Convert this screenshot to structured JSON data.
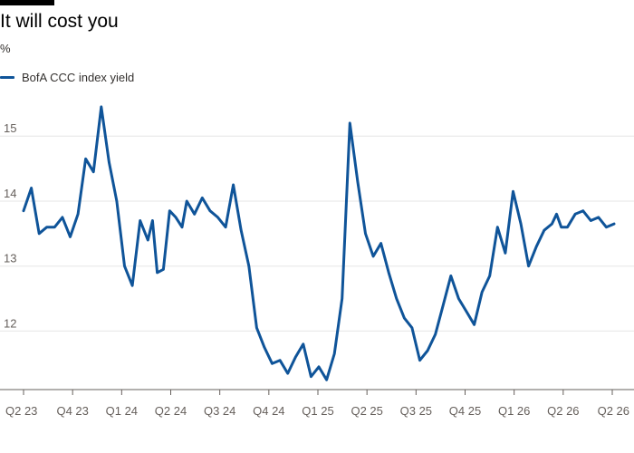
{
  "chart_data": {
    "type": "line",
    "title": "It will cost you",
    "ylabel": "%",
    "ylim": [
      11.1,
      15.7
    ],
    "yticks": [
      12,
      13,
      14,
      15
    ],
    "xticks": [
      "Q2 23",
      "Q4 23",
      "Q1 24",
      "Q2 24",
      "Q3 24",
      "Q4 24",
      "Q1 25",
      "Q2 25",
      "Q3 25",
      "Q4 25",
      "Q1 26",
      "Q2 26",
      "Q2 26"
    ],
    "grid": true,
    "legend": "top-left",
    "series": [
      {
        "name": "BofA CCC index yield",
        "color": "#0f5499",
        "x": [
          0.0,
          0.5,
          1.0,
          1.5,
          2.0,
          2.5,
          3.0,
          3.5,
          4.0,
          4.5,
          5.0,
          5.5,
          6.0,
          6.5,
          7.0,
          7.5,
          8.0,
          8.3,
          8.6,
          9.0,
          9.4,
          9.8,
          10.2,
          10.5,
          11.0,
          11.5,
          12.0,
          12.5,
          13.0,
          13.5,
          14.0,
          14.5,
          15.0,
          15.5,
          16.0,
          16.5,
          17.0,
          17.5,
          18.0,
          18.5,
          19.0,
          19.5,
          20.0,
          20.5,
          21.0,
          21.5,
          22.0,
          22.5,
          23.0,
          23.5,
          24.0,
          24.5,
          25.0,
          25.5,
          26.0,
          26.5,
          27.0,
          27.5,
          28.0,
          28.5,
          29.0,
          29.5,
          30.0,
          30.5,
          31.0,
          31.5,
          32.0,
          32.5,
          33.0,
          33.5,
          34.0,
          34.3,
          34.6,
          35.0,
          35.5,
          36.0,
          36.5,
          37.0,
          37.5,
          38.0
        ],
        "values": [
          13.85,
          14.2,
          13.5,
          13.6,
          13.6,
          13.75,
          13.45,
          13.8,
          14.65,
          14.45,
          15.45,
          14.6,
          14.0,
          13.0,
          12.7,
          13.7,
          13.4,
          13.7,
          12.9,
          12.95,
          13.85,
          13.75,
          13.6,
          14.0,
          13.8,
          14.05,
          13.85,
          13.75,
          13.6,
          14.25,
          13.55,
          13.0,
          12.05,
          11.75,
          11.5,
          11.55,
          11.35,
          11.6,
          11.8,
          11.3,
          11.45,
          11.25,
          11.65,
          12.5,
          15.2,
          14.3,
          13.5,
          13.15,
          13.35,
          12.9,
          12.5,
          12.2,
          12.05,
          11.55,
          11.7,
          11.95,
          12.4,
          12.85,
          12.5,
          12.3,
          12.1,
          12.6,
          12.85,
          13.6,
          13.2,
          14.15,
          13.65,
          13.0,
          13.3,
          13.55,
          13.65,
          13.8,
          13.6,
          13.6,
          13.8,
          13.85,
          13.7,
          13.75,
          13.6,
          13.65
        ],
        "x_min": 0,
        "x_max": 38
      }
    ]
  }
}
